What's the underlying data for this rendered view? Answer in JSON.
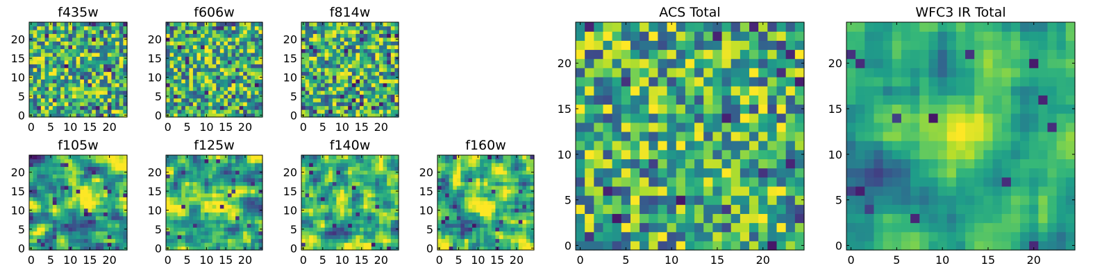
{
  "chart_data": [
    {
      "type": "heatmap",
      "title": "f435w",
      "colormap": "viridis",
      "grid_size": [
        25,
        25
      ],
      "xlim": [
        0,
        24
      ],
      "ylim": [
        0,
        24
      ],
      "xticks": [
        0,
        5,
        10,
        15,
        20
      ],
      "yticks": [
        0,
        5,
        10,
        15,
        20
      ]
    },
    {
      "type": "heatmap",
      "title": "f606w",
      "colormap": "viridis",
      "grid_size": [
        25,
        25
      ],
      "xlim": [
        0,
        24
      ],
      "ylim": [
        0,
        24
      ],
      "xticks": [
        0,
        5,
        10,
        15,
        20
      ],
      "yticks": [
        0,
        5,
        10,
        15,
        20
      ]
    },
    {
      "type": "heatmap",
      "title": "f814w",
      "colormap": "viridis",
      "grid_size": [
        25,
        25
      ],
      "xlim": [
        0,
        24
      ],
      "ylim": [
        0,
        24
      ],
      "xticks": [
        0,
        5,
        10,
        15,
        20
      ],
      "yticks": [
        0,
        5,
        10,
        15,
        20
      ]
    },
    {
      "type": "heatmap",
      "title": "f105w",
      "colormap": "viridis",
      "grid_size": [
        25,
        25
      ],
      "xlim": [
        0,
        24
      ],
      "ylim": [
        0,
        24
      ],
      "xticks": [
        0,
        5,
        10,
        15,
        20
      ],
      "yticks": [
        0,
        5,
        10,
        15,
        20
      ]
    },
    {
      "type": "heatmap",
      "title": "f125w",
      "colormap": "viridis",
      "grid_size": [
        25,
        25
      ],
      "xlim": [
        0,
        24
      ],
      "ylim": [
        0,
        24
      ],
      "xticks": [
        0,
        5,
        10,
        15,
        20
      ],
      "yticks": [
        0,
        5,
        10,
        15,
        20
      ]
    },
    {
      "type": "heatmap",
      "title": "f140w",
      "colormap": "viridis",
      "grid_size": [
        25,
        25
      ],
      "xlim": [
        0,
        24
      ],
      "ylim": [
        0,
        24
      ],
      "xticks": [
        0,
        5,
        10,
        15,
        20
      ],
      "yticks": [
        0,
        5,
        10,
        15,
        20
      ]
    },
    {
      "type": "heatmap",
      "title": "f160w",
      "colormap": "viridis",
      "grid_size": [
        25,
        25
      ],
      "xlim": [
        0,
        24
      ],
      "ylim": [
        0,
        24
      ],
      "xticks": [
        0,
        5,
        10,
        15,
        20
      ],
      "yticks": [
        0,
        5,
        10,
        15,
        20
      ]
    },
    {
      "type": "heatmap",
      "title": "ACS Total",
      "colormap": "viridis",
      "grid_size": [
        25,
        25
      ],
      "xlim": [
        0,
        24
      ],
      "ylim": [
        0,
        24
      ],
      "xticks": [
        0,
        5,
        10,
        15,
        20
      ],
      "yticks": [
        0,
        5,
        10,
        15,
        20
      ]
    },
    {
      "type": "heatmap",
      "title": "WFC3 IR Total",
      "colormap": "viridis",
      "grid_size": [
        25,
        25
      ],
      "xlim": [
        0,
        24
      ],
      "ylim": [
        0,
        24
      ],
      "xticks": [
        0,
        5,
        10,
        15,
        20
      ],
      "yticks": [
        0,
        5,
        10,
        15,
        20
      ]
    }
  ]
}
